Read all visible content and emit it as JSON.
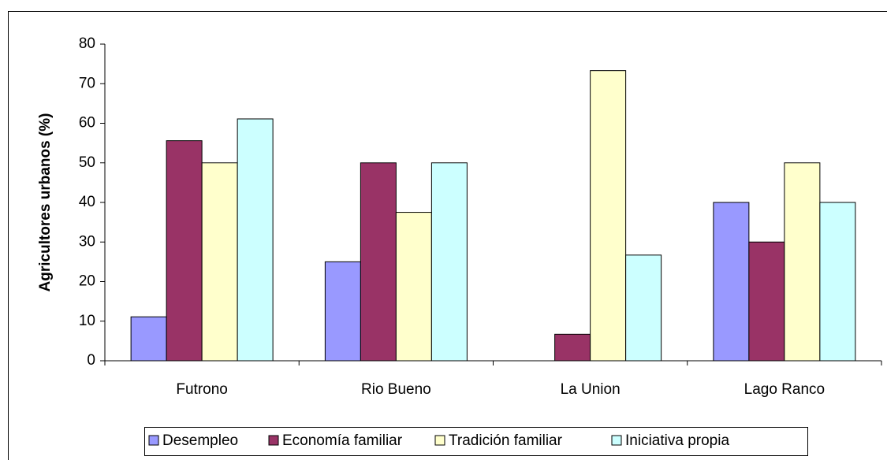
{
  "chart_data": {
    "type": "bar",
    "ylabel": "Agricultores urbanos (%)",
    "categories": [
      "Futrono",
      "Rio Bueno",
      "La Union",
      "Lago Ranco"
    ],
    "series": [
      {
        "name": "Desempleo",
        "color": "#9999ff",
        "values": [
          11.1,
          25,
          0,
          40
        ]
      },
      {
        "name": "Economía familiar",
        "color": "#993366",
        "values": [
          55.6,
          50,
          6.7,
          30
        ]
      },
      {
        "name": "Tradición familiar",
        "color": "#ffffcc",
        "values": [
          50,
          37.5,
          73.3,
          50
        ]
      },
      {
        "name": "Iniciativa propia",
        "color": "#ccffff",
        "values": [
          61.1,
          50,
          26.7,
          40
        ]
      }
    ],
    "ylim": [
      0,
      80
    ],
    "yticks": [
      0,
      10,
      20,
      30,
      40,
      50,
      60,
      70,
      80
    ],
    "legend": "bottom"
  }
}
